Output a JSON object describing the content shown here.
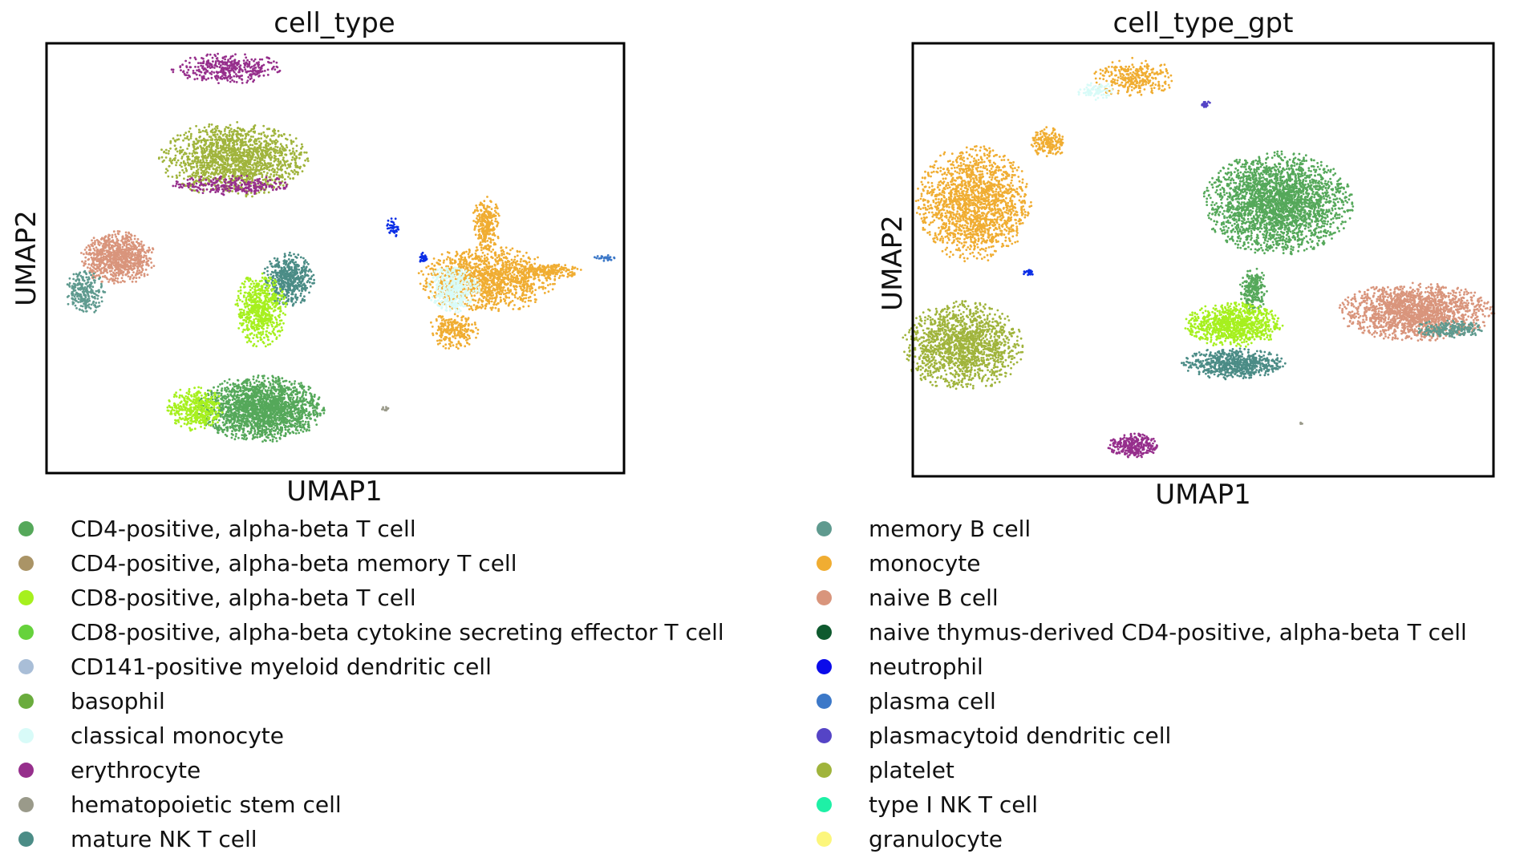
{
  "chart_data": [
    {
      "type": "scatter",
      "title": "cell_type",
      "xlabel": "UMAP1",
      "ylabel": "UMAP2",
      "grid": false,
      "clusters": [
        {
          "name": "erythrocyte",
          "color": "#962f8c",
          "cx": 3.3,
          "cy": 9.4,
          "rx": 1.0,
          "ry": 0.35,
          "n": 380
        },
        {
          "name": "platelet",
          "color": "#a0b43c",
          "cx": 3.4,
          "cy": 7.3,
          "rx": 1.3,
          "ry": 0.85,
          "n": 1600
        },
        {
          "name": "erythrocyte",
          "color": "#962f8c",
          "cx": 3.4,
          "cy": 6.7,
          "rx": 1.1,
          "ry": 0.22,
          "n": 260
        },
        {
          "name": "naive B cell",
          "color": "#d9957c",
          "cx": 1.3,
          "cy": 5.0,
          "rx": 0.65,
          "ry": 0.6,
          "n": 900
        },
        {
          "name": "memory B cell",
          "color": "#5f9a8f",
          "cx": 0.7,
          "cy": 4.2,
          "rx": 0.35,
          "ry": 0.5,
          "n": 240
        },
        {
          "name": "mature NK T cell",
          "color": "#4b8c86",
          "cx": 4.4,
          "cy": 4.5,
          "rx": 0.45,
          "ry": 0.6,
          "n": 520
        },
        {
          "name": "CD8-positive, alpha-beta T cell",
          "color": "#a6f01e",
          "cx": 3.9,
          "cy": 3.8,
          "rx": 0.45,
          "ry": 0.85,
          "n": 620
        },
        {
          "name": "CD4-positive, alpha-beta T cell",
          "color": "#55a85a",
          "cx": 3.9,
          "cy": 1.5,
          "rx": 1.1,
          "ry": 0.75,
          "n": 2000
        },
        {
          "name": "CD8-positive, alpha-beta T cell",
          "color": "#a6f01e",
          "cx": 2.7,
          "cy": 1.5,
          "rx": 0.5,
          "ry": 0.5,
          "n": 420
        },
        {
          "name": "neutrophil",
          "color": "#0b2ee6",
          "cx": 6.3,
          "cy": 5.7,
          "rx": 0.12,
          "ry": 0.25,
          "n": 40
        },
        {
          "name": "neutrophil",
          "color": "#0b2ee6",
          "cx": 6.85,
          "cy": 5.0,
          "rx": 0.08,
          "ry": 0.12,
          "n": 25
        },
        {
          "name": "plasma cell",
          "color": "#3c78c8",
          "cx": 10.15,
          "cy": 5.0,
          "rx": 0.2,
          "ry": 0.07,
          "n": 25
        },
        {
          "name": "monocyte",
          "color": "#f0ad32",
          "cx": 8.0,
          "cy": 4.5,
          "rx": 1.2,
          "ry": 0.75,
          "n": 1300
        },
        {
          "name": "monocyte",
          "color": "#f0ad32",
          "cx": 8.0,
          "cy": 5.8,
          "rx": 0.25,
          "ry": 0.6,
          "n": 260
        },
        {
          "name": "monocyte",
          "color": "#f0ad32",
          "cx": 9.1,
          "cy": 4.7,
          "rx": 0.6,
          "ry": 0.17,
          "n": 200
        },
        {
          "name": "monocyte",
          "color": "#f0ad32",
          "cx": 7.4,
          "cy": 3.3,
          "rx": 0.45,
          "ry": 0.4,
          "n": 250
        },
        {
          "name": "classical monocyte",
          "color": "#d8fbf8",
          "cx": 7.4,
          "cy": 4.3,
          "rx": 0.45,
          "ry": 0.55,
          "n": 420
        },
        {
          "name": "hematopoietic stem cell",
          "color": "#9a9a8a",
          "cx": 6.15,
          "cy": 1.5,
          "rx": 0.08,
          "ry": 0.05,
          "n": 10
        }
      ]
    },
    {
      "type": "scatter",
      "title": "cell_type_gpt",
      "xlabel": "UMAP1",
      "ylabel": "UMAP2",
      "grid": false,
      "clusters": [
        {
          "name": "monocyte",
          "color": "#f0ad32",
          "cx": 4.0,
          "cy": 9.2,
          "rx": 0.7,
          "ry": 0.45,
          "n": 300
        },
        {
          "name": "classical monocyte",
          "color": "#d8fbf8",
          "cx": 3.3,
          "cy": 8.9,
          "rx": 0.35,
          "ry": 0.2,
          "n": 80
        },
        {
          "name": "plasmacytoid dendritic cell",
          "color": "#5544c6",
          "cx": 5.3,
          "cy": 8.6,
          "rx": 0.12,
          "ry": 0.08,
          "n": 22
        },
        {
          "name": "monocyte",
          "color": "#f0ad32",
          "cx": 1.1,
          "cy": 6.3,
          "rx": 1.0,
          "ry": 1.3,
          "n": 1700
        },
        {
          "name": "monocyte",
          "color": "#f0ad32",
          "cx": 2.45,
          "cy": 7.7,
          "rx": 0.3,
          "ry": 0.35,
          "n": 180
        },
        {
          "name": "neutrophil",
          "color": "#0b2ee6",
          "cx": 2.1,
          "cy": 4.7,
          "rx": 0.12,
          "ry": 0.06,
          "n": 20
        },
        {
          "name": "CD4-positive, alpha-beta T cell",
          "color": "#55a85a",
          "cx": 6.6,
          "cy": 6.3,
          "rx": 1.3,
          "ry": 1.15,
          "n": 2600
        },
        {
          "name": "CD4-positive, alpha-beta T cell",
          "color": "#55a85a",
          "cx": 6.15,
          "cy": 4.3,
          "rx": 0.25,
          "ry": 0.5,
          "n": 220
        },
        {
          "name": "CD8-positive, alpha-beta T cell",
          "color": "#a6f01e",
          "cx": 5.8,
          "cy": 3.5,
          "rx": 0.85,
          "ry": 0.5,
          "n": 900
        },
        {
          "name": "mature NK T cell",
          "color": "#4b8c86",
          "cx": 5.8,
          "cy": 2.6,
          "rx": 0.9,
          "ry": 0.35,
          "n": 650
        },
        {
          "name": "platelet",
          "color": "#a0b43c",
          "cx": 0.9,
          "cy": 3.0,
          "rx": 1.05,
          "ry": 1.0,
          "n": 1500
        },
        {
          "name": "naive B cell",
          "color": "#d9957c",
          "cx": 9.1,
          "cy": 3.8,
          "rx": 1.35,
          "ry": 0.65,
          "n": 1700
        },
        {
          "name": "memory B cell",
          "color": "#5f9a8f",
          "cx": 9.7,
          "cy": 3.4,
          "rx": 0.6,
          "ry": 0.2,
          "n": 200
        },
        {
          "name": "erythrocyte",
          "color": "#962f8c",
          "cx": 4.0,
          "cy": 0.7,
          "rx": 0.45,
          "ry": 0.28,
          "n": 320
        },
        {
          "name": "hematopoietic stem cell",
          "color": "#9a9a8a",
          "cx": 7.0,
          "cy": 1.2,
          "rx": 0.05,
          "ry": 0.05,
          "n": 4
        }
      ]
    }
  ],
  "legend": {
    "left": [
      {
        "label": "CD4-positive, alpha-beta T cell",
        "color": "#55a85a"
      },
      {
        "label": "CD4-positive, alpha-beta memory T cell",
        "color": "#aa9466"
      },
      {
        "label": "CD8-positive, alpha-beta T cell",
        "color": "#a6f01e"
      },
      {
        "label": "CD8-positive, alpha-beta cytokine secreting effector T cell",
        "color": "#66d23c"
      },
      {
        "label": "CD141-positive myeloid dendritic cell",
        "color": "#a9bed7"
      },
      {
        "label": "basophil",
        "color": "#6aac3d"
      },
      {
        "label": "classical monocyte",
        "color": "#d8fbf8"
      },
      {
        "label": "erythrocyte",
        "color": "#962f8c"
      },
      {
        "label": "hematopoietic stem cell",
        "color": "#9a9a8a"
      },
      {
        "label": "mature NK T cell",
        "color": "#4b8c86"
      }
    ],
    "right": [
      {
        "label": "memory B cell",
        "color": "#5f9a8f"
      },
      {
        "label": "monocyte",
        "color": "#f0ad32"
      },
      {
        "label": "naive B cell",
        "color": "#d9957c"
      },
      {
        "label": "naive thymus-derived CD4-positive, alpha-beta T cell",
        "color": "#0e5a2e"
      },
      {
        "label": "neutrophil",
        "color": "#0b0bea"
      },
      {
        "label": "plasma cell",
        "color": "#3c78c8"
      },
      {
        "label": "plasmacytoid dendritic cell",
        "color": "#5544c6"
      },
      {
        "label": "platelet",
        "color": "#a0b43c"
      },
      {
        "label": "type I NK T cell",
        "color": "#1ef0a6"
      },
      {
        "label": "granulocyte",
        "color": "#fcf67c"
      }
    ]
  }
}
